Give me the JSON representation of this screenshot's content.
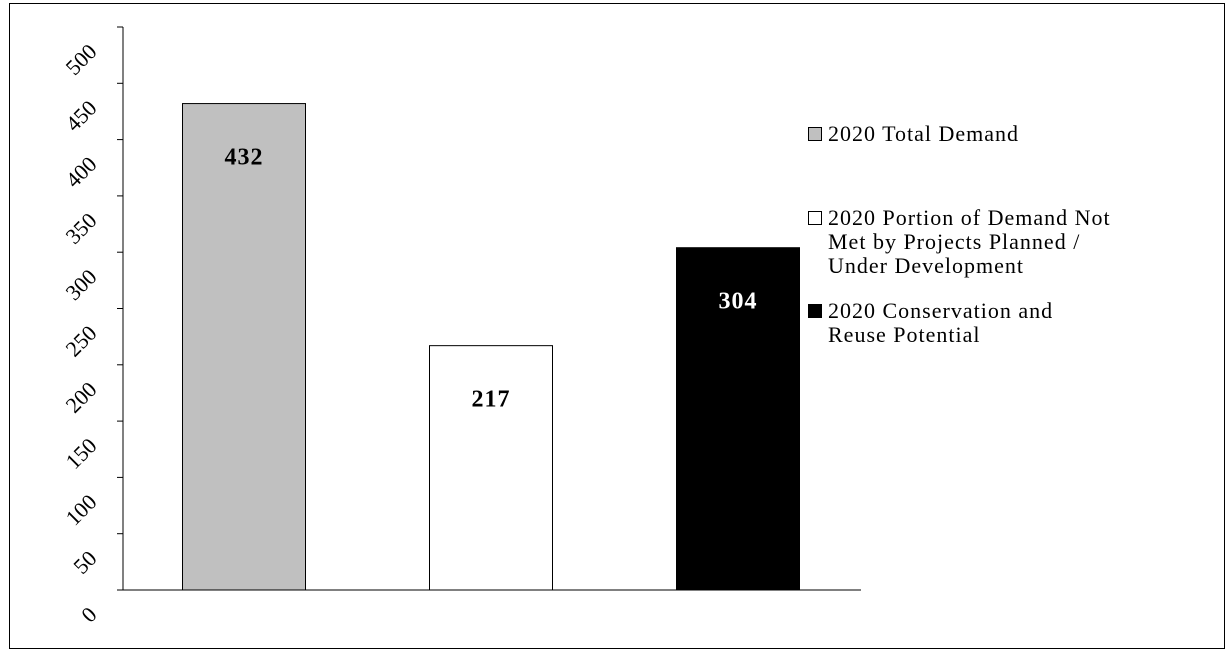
{
  "chart_data": {
    "type": "bar",
    "categories": [
      "2020 Total Demand",
      "2020 Portion of Demand Not Met by Projects Planned / Under Development",
      "2020 Conservation and Reuse Potential"
    ],
    "values": [
      432,
      217,
      304
    ],
    "data_labels": [
      "432",
      "217",
      "304"
    ],
    "bar_colors": [
      "#c0c0c0",
      "#ffffff",
      "#000000"
    ],
    "label_colors": [
      "#000000",
      "#000000",
      "#ffffff"
    ],
    "ylim": [
      0,
      500
    ],
    "yticks": [
      0,
      50,
      100,
      150,
      200,
      250,
      300,
      350,
      400,
      450,
      500
    ],
    "ytick_labels": [
      "0",
      "50",
      "100",
      "150",
      "200",
      "250",
      "300",
      "350",
      "400",
      "450",
      "500"
    ],
    "grid": false,
    "legend_position": "right",
    "legend": [
      {
        "label": "2020 Total Demand",
        "color": "#c0c0c0"
      },
      {
        "label": "2020 Portion of Demand Not\nMet by Projects Planned /\nUnder Development",
        "color": "#ffffff"
      },
      {
        "label": "2020 Conservation and\nReuse Potential",
        "color": "#000000"
      }
    ]
  }
}
